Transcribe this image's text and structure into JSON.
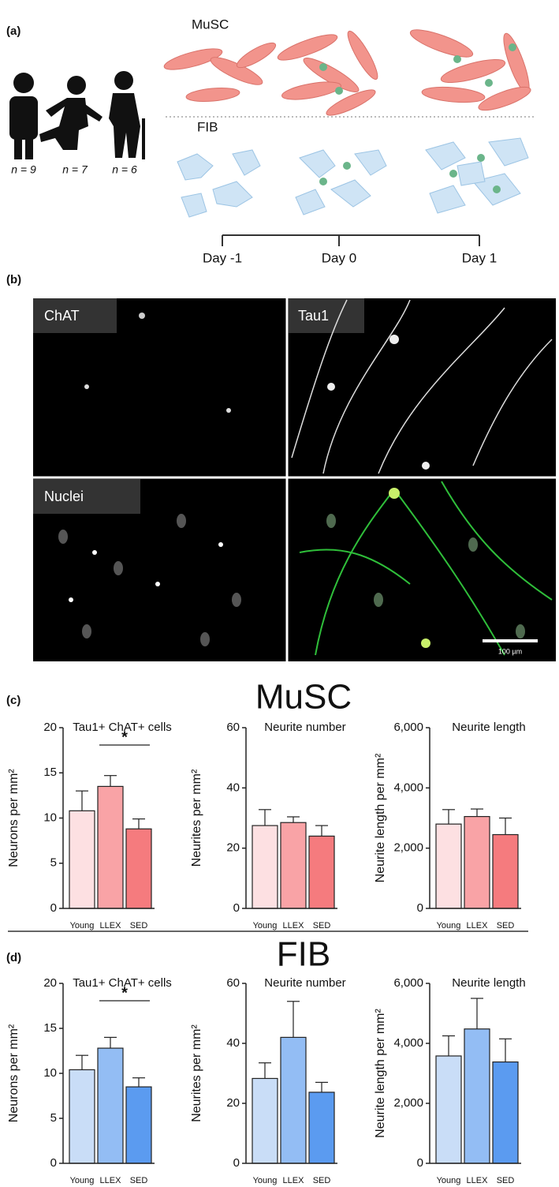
{
  "panel_a": {
    "label": "(a)",
    "cohorts": [
      "n = 9",
      "n = 7",
      "n = 6"
    ],
    "rows": [
      "MuSC",
      "FIB"
    ],
    "days": [
      "Day -1",
      "Day 0",
      "Day 1"
    ]
  },
  "panel_b": {
    "label": "(b)",
    "channels": [
      "ChAT",
      "Tau1",
      "Nuclei"
    ],
    "scale_bar": "100 µm"
  },
  "sections": [
    {
      "label": "(c)",
      "title": "MuSC"
    },
    {
      "label": "(d)",
      "title": "FIB"
    }
  ],
  "chart_data": [
    {
      "type": "bar",
      "title": "Tau1+ ChAT+ cells",
      "ylabel": "Neurons per mm²",
      "categories": [
        "Young",
        "LLEX",
        "SED"
      ],
      "values": [
        10.8,
        13.5,
        8.8
      ],
      "errors": [
        2.2,
        1.2,
        1.1
      ],
      "colors": [
        "#fde0e2",
        "#f9a3a6",
        "#f57b7e"
      ],
      "ylim": [
        0,
        20
      ],
      "yticks": [
        0,
        5,
        10,
        15,
        20
      ],
      "annotations": [
        {
          "text": "*",
          "from": "LLEX",
          "to": "SED"
        }
      ]
    },
    {
      "type": "bar",
      "title": "Neurite number",
      "ylabel": "Neurites per mm²",
      "categories": [
        "Young",
        "LLEX",
        "SED"
      ],
      "values": [
        27.5,
        28.5,
        24
      ],
      "errors": [
        5.3,
        1.9,
        3.5
      ],
      "colors": [
        "#fde0e2",
        "#f9a3a6",
        "#f57b7e"
      ],
      "ylim": [
        0,
        60
      ],
      "yticks": [
        0,
        20,
        40,
        60
      ]
    },
    {
      "type": "bar",
      "title": "Neurite length",
      "ylabel": "Neurite length per mm²",
      "categories": [
        "Young",
        "LLEX",
        "SED"
      ],
      "values": [
        2800,
        3050,
        2450
      ],
      "errors": [
        480,
        250,
        550
      ],
      "colors": [
        "#fde0e2",
        "#f9a3a6",
        "#f57b7e"
      ],
      "ylim": [
        0,
        6000
      ],
      "yticks": [
        0,
        {
          "value": 2000,
          "label": "2,000"
        },
        {
          "value": 4000,
          "label": "4,000"
        },
        {
          "value": 6000,
          "label": "6,000"
        }
      ]
    },
    {
      "type": "bar",
      "title": "Tau1+ ChAT+ cells",
      "ylabel": "Neurons per mm²",
      "categories": [
        "Young",
        "LLEX",
        "SED"
      ],
      "values": [
        10.4,
        12.8,
        8.5
      ],
      "errors": [
        1.6,
        1.2,
        1.0
      ],
      "colors": [
        "#c9ddf7",
        "#93bdf4",
        "#5b9bf0"
      ],
      "ylim": [
        0,
        20
      ],
      "yticks": [
        0,
        5,
        10,
        15,
        20
      ],
      "annotations": [
        {
          "text": "*",
          "from": "LLEX",
          "to": "SED"
        }
      ]
    },
    {
      "type": "bar",
      "title": "Neurite number",
      "ylabel": "Neurites per mm²",
      "categories": [
        "Young",
        "LLEX",
        "SED"
      ],
      "values": [
        28.3,
        42,
        23.7
      ],
      "errors": [
        5.2,
        12,
        3.3
      ],
      "colors": [
        "#c9ddf7",
        "#93bdf4",
        "#5b9bf0"
      ],
      "ylim": [
        0,
        60
      ],
      "yticks": [
        0,
        20,
        40,
        60
      ]
    },
    {
      "type": "bar",
      "title": "Neurite length",
      "ylabel": "Neurite length per mm²",
      "categories": [
        "Young",
        "LLEX",
        "SED"
      ],
      "values": [
        3580,
        4480,
        3380
      ],
      "errors": [
        670,
        1020,
        770
      ],
      "colors": [
        "#c9ddf7",
        "#93bdf4",
        "#5b9bf0"
      ],
      "ylim": [
        0,
        6000
      ],
      "yticks": [
        0,
        {
          "value": 2000,
          "label": "2,000"
        },
        {
          "value": 4000,
          "label": "4,000"
        },
        {
          "value": 6000,
          "label": "6,000"
        }
      ]
    }
  ]
}
